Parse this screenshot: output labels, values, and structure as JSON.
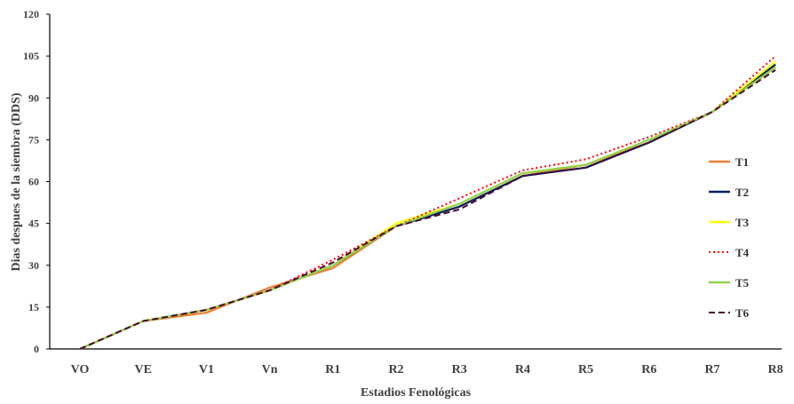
{
  "chart_data": {
    "type": "line",
    "xlabel": "Estadios Fenológicas",
    "ylabel": "Dias despues de la siembra (DDS)",
    "categories": [
      "VO",
      "VE",
      "V1",
      "Vn",
      "R1",
      "R2",
      "R3",
      "R4",
      "R5",
      "R6",
      "R7",
      "R8"
    ],
    "yticks": [
      "0",
      "15",
      "30",
      "45",
      "60",
      "75",
      "90",
      "105",
      "120"
    ],
    "ylim": [
      0,
      120
    ],
    "grid": false,
    "legend_position": "right",
    "series": [
      {
        "name": "T1",
        "color": "#ED7D31",
        "style": "solid",
        "values": [
          0,
          10,
          13,
          22,
          29,
          44,
          51,
          62,
          66,
          74,
          85,
          101
        ]
      },
      {
        "name": "T2",
        "color": "#002060",
        "style": "solid",
        "values": [
          0,
          10,
          14,
          21,
          30,
          44,
          51,
          62,
          65,
          74,
          85,
          102
        ]
      },
      {
        "name": "T3",
        "color": "#FFFF00",
        "style": "solid",
        "values": [
          0,
          10,
          14,
          21,
          30,
          45,
          52,
          63,
          66,
          75,
          85,
          103
        ]
      },
      {
        "name": "T4",
        "color": "#FF0000",
        "style": "dotted",
        "values": [
          0,
          10,
          14,
          21,
          32,
          44,
          54,
          64,
          68,
          76,
          85,
          105
        ]
      },
      {
        "name": "T5",
        "color": "#92D050",
        "style": "solid",
        "values": [
          0,
          10,
          14,
          21,
          30,
          44,
          52,
          63,
          66,
          75,
          85,
          101
        ]
      },
      {
        "name": "T6",
        "color": "#4B0A30",
        "style": "dashed",
        "values": [
          0,
          10,
          14,
          21,
          31,
          44,
          50,
          62,
          65,
          74,
          85,
          100
        ]
      }
    ]
  }
}
